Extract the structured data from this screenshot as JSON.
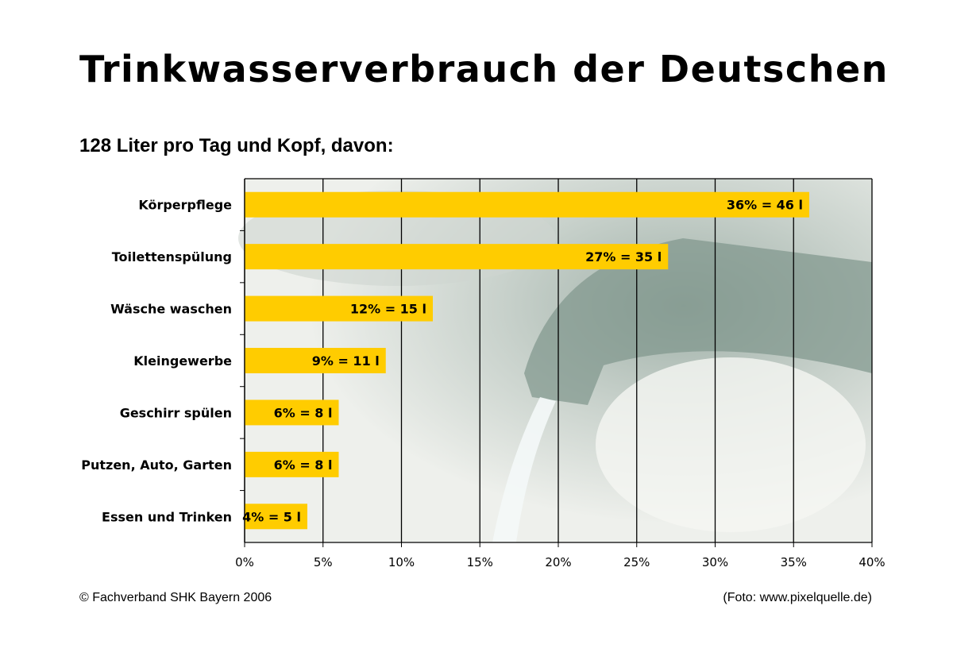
{
  "chart_data": {
    "type": "bar",
    "orientation": "horizontal",
    "title": "Trinkwasserverbrauch der Deutschen",
    "subtitle": "128 Liter pro Tag und Kopf, davon:",
    "categories": [
      "Körperpflege",
      "Toilettenspülung",
      "Wäsche waschen",
      "Kleingewerbe",
      "Geschirr spülen",
      "Putzen, Auto, Garten",
      "Essen und Trinken"
    ],
    "values": [
      36,
      27,
      12,
      9,
      6,
      6,
      4
    ],
    "data_labels": [
      "36% = 46 l",
      "27% = 35 l",
      "12% = 15 l",
      "9% = 11 l",
      "6% = 8 l",
      "6% = 8 l",
      "4% = 5 l"
    ],
    "xlim": [
      0,
      40
    ],
    "x_ticks": [
      "0%",
      "5%",
      "10%",
      "15%",
      "20%",
      "25%",
      "30%",
      "35%",
      "40%"
    ],
    "xlabel": "",
    "ylabel": "",
    "grid": "vertical",
    "bar_color": "#FFCC00",
    "background": "photo of water tap"
  },
  "footer": {
    "source": "© Fachverband SHK Bayern 2006",
    "photo_credit": "(Foto: www.pixelquelle.de)"
  }
}
